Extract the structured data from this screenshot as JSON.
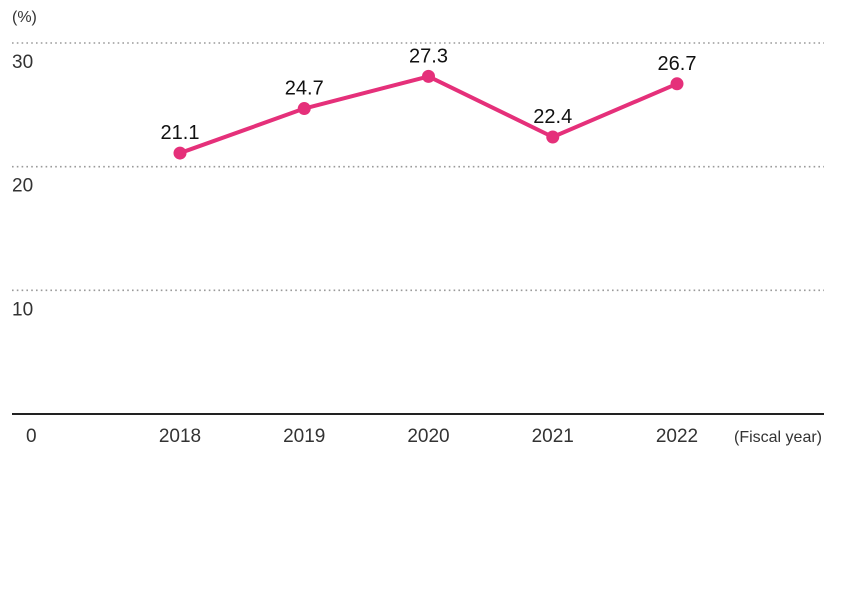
{
  "chart_data": {
    "type": "line",
    "categories": [
      "2018",
      "2019",
      "2020",
      "2021",
      "2022"
    ],
    "series": [
      {
        "values": [
          21.1,
          24.7,
          27.3,
          22.4,
          26.7
        ],
        "color": "#e5307a"
      }
    ],
    "data_labels": [
      "21.1",
      "24.7",
      "27.3",
      "22.4",
      "26.7"
    ],
    "y_unit": "(%)",
    "x_unit": "(Fiscal year)",
    "ylim": [
      0,
      30
    ],
    "y_ticks": [
      "0",
      "10",
      "20",
      "30"
    ],
    "grid": true,
    "grid_style": "dotted",
    "colors": {
      "line": "#e5307a",
      "grid": "#9a9a9a",
      "axis": "#222222"
    }
  }
}
